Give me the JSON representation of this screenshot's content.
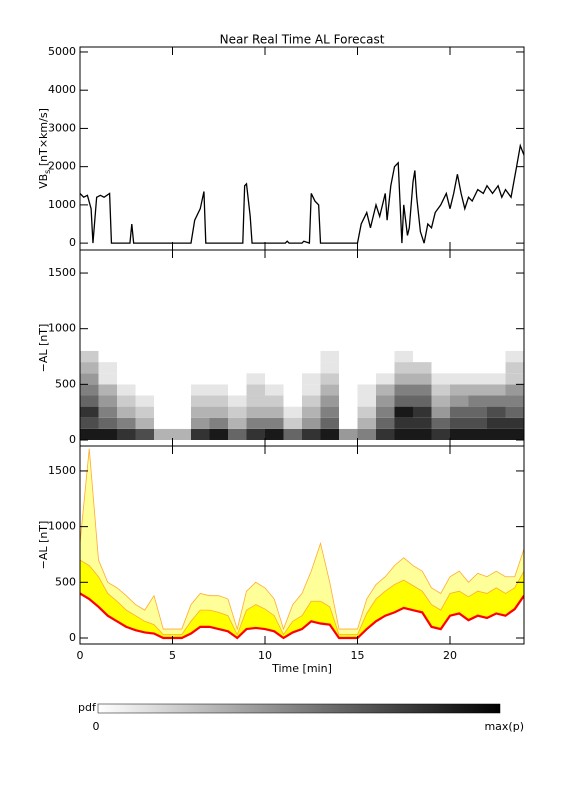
{
  "title": "Near Real Time AL Forecast",
  "chart_data": [
    {
      "type": "line",
      "ylabel": {
        "main": "VB",
        "sub": "s",
        "unit": " [nT×km/s]"
      },
      "xlim": [
        0,
        24
      ],
      "xticks": [
        0,
        5,
        10,
        15,
        20
      ],
      "ylim": [
        -180,
        5130
      ],
      "yticks": [
        0,
        1000,
        2000,
        3000,
        4000,
        5000
      ],
      "x": [
        0,
        0.2,
        0.4,
        0.6,
        0.7,
        0.9,
        1.1,
        1.3,
        1.6,
        1.7,
        2.7,
        2.8,
        2.9,
        6.0,
        6.2,
        6.5,
        6.7,
        6.8,
        8.8,
        8.9,
        9.0,
        9.2,
        9.3,
        11.1,
        11.2,
        11.3,
        12.0,
        12.1,
        12.4,
        12.5,
        12.7,
        12.9,
        13.0,
        15.0,
        15.2,
        15.5,
        15.7,
        16.0,
        16.2,
        16.5,
        16.6,
        16.8,
        17.0,
        17.2,
        17.4,
        17.5,
        17.7,
        17.8,
        18.0,
        18.1,
        18.2,
        18.4,
        18.6,
        18.8,
        19.0,
        19.2,
        19.5,
        19.8,
        20.0,
        20.2,
        20.4,
        20.6,
        20.8,
        21.0,
        21.2,
        21.5,
        21.8,
        22.0,
        22.3,
        22.6,
        22.8,
        23.0,
        23.3,
        23.6,
        23.8,
        24.0
      ],
      "series": [
        {
          "color": "#000000",
          "values": [
            1300,
            1200,
            1250,
            900,
            0,
            1200,
            1250,
            1200,
            1300,
            0,
            0,
            500,
            0,
            0,
            600,
            900,
            1350,
            0,
            0,
            1500,
            1550,
            700,
            0,
            0,
            50,
            0,
            0,
            50,
            0,
            1300,
            1100,
            1000,
            0,
            0,
            500,
            800,
            400,
            1000,
            700,
            1300,
            600,
            1500,
            2000,
            2100,
            0,
            1000,
            200,
            400,
            1600,
            1900,
            1200,
            300,
            0,
            500,
            400,
            800,
            1000,
            1300,
            900,
            1300,
            1800,
            1300,
            900,
            1200,
            1100,
            1400,
            1300,
            1500,
            1300,
            1500,
            1200,
            1400,
            1200,
            2000,
            2550,
            2300
          ]
        }
      ]
    },
    {
      "type": "heatmap",
      "ylabel": "−AL [nT]",
      "xlim": [
        0,
        24
      ],
      "xticks": [
        0,
        5,
        10,
        15,
        20
      ],
      "ylim": [
        -54,
        1707
      ],
      "yticks": [
        0,
        500,
        1000,
        1500
      ],
      "xbins": [
        0,
        1,
        2,
        3,
        4,
        5,
        6,
        7,
        8,
        9,
        10,
        11,
        12,
        13,
        14,
        15,
        16,
        17,
        18,
        19,
        20,
        21,
        22,
        23,
        24
      ],
      "ybins": [
        0,
        100,
        200,
        300,
        400,
        500,
        600,
        700,
        800
      ],
      "z": [
        [
          0.9,
          0.9,
          0.8,
          0.7,
          0.3,
          0.3,
          0.8,
          0.9,
          0.6,
          0.8,
          0.9,
          0.6,
          0.8,
          0.9,
          0.4,
          0.5,
          0.8,
          0.9,
          0.9,
          0.8,
          0.9,
          0.9,
          0.9,
          0.9
        ],
        [
          0.7,
          0.6,
          0.5,
          0.3,
          0,
          0,
          0.4,
          0.5,
          0.3,
          0.5,
          0.5,
          0.2,
          0.4,
          0.6,
          0,
          0.3,
          0.6,
          0.8,
          0.8,
          0.6,
          0.7,
          0.7,
          0.8,
          0.8
        ],
        [
          0.8,
          0.5,
          0.3,
          0.2,
          0,
          0,
          0.3,
          0.3,
          0.2,
          0.3,
          0.3,
          0.1,
          0.3,
          0.5,
          0,
          0.2,
          0.5,
          0.9,
          0.8,
          0.4,
          0.6,
          0.6,
          0.7,
          0.6
        ],
        [
          0.6,
          0.4,
          0.2,
          0.1,
          0,
          0,
          0.2,
          0.2,
          0.1,
          0.2,
          0.2,
          0,
          0.2,
          0.4,
          0,
          0.1,
          0.4,
          0.6,
          0.6,
          0.3,
          0.4,
          0.5,
          0.5,
          0.5
        ],
        [
          0.5,
          0.3,
          0.1,
          0,
          0,
          0,
          0.1,
          0.1,
          0,
          0.2,
          0.1,
          0,
          0.1,
          0.3,
          0,
          0.1,
          0.3,
          0.5,
          0.5,
          0.2,
          0.3,
          0.3,
          0.3,
          0.4
        ],
        [
          0.4,
          0.1,
          0,
          0,
          0,
          0,
          0,
          0,
          0,
          0.1,
          0,
          0,
          0.1,
          0.2,
          0,
          0,
          0.1,
          0.3,
          0.3,
          0.1,
          0.1,
          0.1,
          0.1,
          0.2
        ],
        [
          0.3,
          0.1,
          0,
          0,
          0,
          0,
          0,
          0,
          0,
          0,
          0,
          0,
          0,
          0.1,
          0,
          0,
          0,
          0.2,
          0.2,
          0,
          0,
          0,
          0,
          0.2
        ],
        [
          0.2,
          0,
          0,
          0,
          0,
          0,
          0,
          0,
          0,
          0,
          0,
          0,
          0,
          0.1,
          0,
          0,
          0,
          0.1,
          0,
          0,
          0,
          0,
          0,
          0.1
        ]
      ]
    },
    {
      "type": "band",
      "ylabel": "−AL [nT]",
      "xlabel": "Time [min]",
      "xlim": [
        0,
        24
      ],
      "xticks": [
        0,
        5,
        10,
        15,
        20
      ],
      "ylim": [
        -54,
        1724
      ],
      "yticks": [
        0,
        500,
        1000,
        1500
      ],
      "x": [
        0,
        0.5,
        1,
        1.5,
        2,
        2.5,
        3,
        3.5,
        4,
        4.5,
        5,
        5.5,
        6,
        6.5,
        7,
        7.5,
        8,
        8.5,
        9,
        9.5,
        10,
        10.5,
        11,
        11.5,
        12,
        12.5,
        13,
        13.5,
        14,
        14.5,
        15,
        15.5,
        16,
        16.5,
        17,
        17.5,
        18,
        18.5,
        19,
        19.5,
        20,
        20.5,
        21,
        21.5,
        22,
        22.5,
        23,
        23.5,
        24
      ],
      "series": [
        {
          "fill": "#ffff99",
          "color": "#ffaa33",
          "values": [
            850,
            1700,
            700,
            500,
            450,
            380,
            300,
            250,
            380,
            80,
            80,
            80,
            300,
            400,
            380,
            380,
            350,
            80,
            420,
            500,
            450,
            350,
            80,
            300,
            400,
            600,
            850,
            500,
            80,
            80,
            80,
            350,
            480,
            550,
            650,
            720,
            650,
            600,
            450,
            400,
            550,
            600,
            500,
            580,
            550,
            600,
            550,
            550,
            800
          ]
        },
        {
          "fill": "#ffff00",
          "color": "#ffaa33",
          "values": [
            700,
            650,
            550,
            400,
            330,
            250,
            200,
            150,
            120,
            30,
            30,
            30,
            150,
            250,
            250,
            230,
            200,
            30,
            250,
            300,
            260,
            200,
            30,
            150,
            200,
            330,
            330,
            280,
            30,
            30,
            30,
            220,
            350,
            420,
            480,
            520,
            470,
            420,
            300,
            250,
            400,
            420,
            370,
            420,
            400,
            450,
            400,
            450,
            600
          ]
        },
        {
          "color": "#ff0000",
          "values": [
            400,
            350,
            280,
            200,
            150,
            100,
            70,
            50,
            40,
            0,
            0,
            0,
            40,
            100,
            100,
            80,
            60,
            0,
            80,
            90,
            80,
            60,
            0,
            50,
            80,
            150,
            130,
            120,
            0,
            0,
            0,
            80,
            150,
            200,
            230,
            270,
            250,
            230,
            100,
            80,
            200,
            220,
            160,
            200,
            180,
            220,
            200,
            260,
            380
          ]
        }
      ]
    }
  ],
  "colorbar": {
    "label": "pdf",
    "min_label": "0",
    "max_label": "max(p)"
  }
}
